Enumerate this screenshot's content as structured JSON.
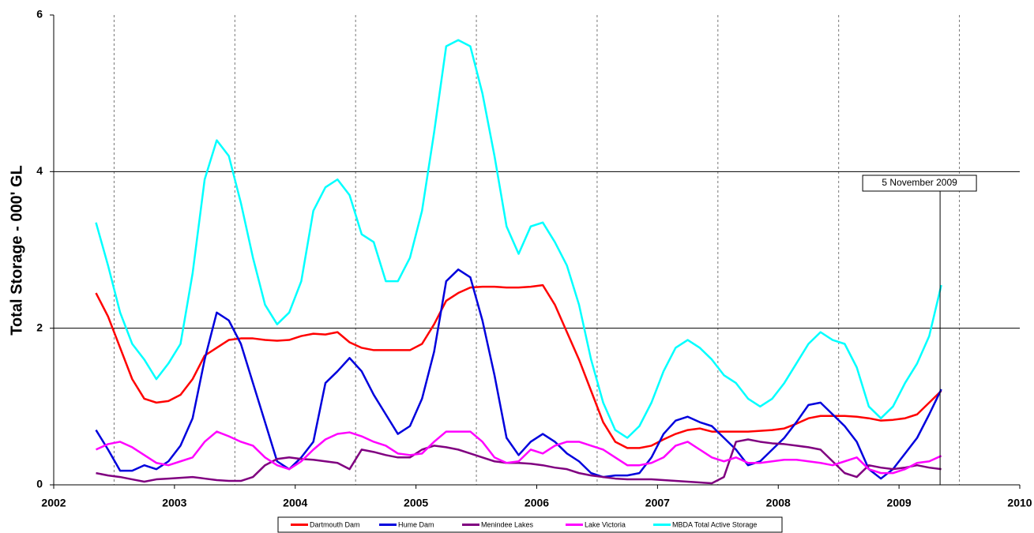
{
  "chart_data": {
    "type": "line",
    "ylabel": "Total Storage - 000' GL",
    "annotation": {
      "text": "5 November 2009",
      "x": 2009.34
    },
    "xlim": [
      2002,
      2010
    ],
    "xticks": [
      2002,
      2003,
      2004,
      2005,
      2006,
      2007,
      2008,
      2009,
      2010
    ],
    "xgrid_dashed": [
      2002.5,
      2003.5,
      2004.5,
      2005.5,
      2006.5,
      2007.5,
      2008.5,
      2009.5
    ],
    "ylim": [
      0,
      6
    ],
    "yticks": [
      0,
      2,
      4,
      6
    ],
    "grid": true,
    "legend": "bottom",
    "x": [
      2002.35,
      2002.45,
      2002.55,
      2002.65,
      2002.75,
      2002.85,
      2002.95,
      2003.05,
      2003.15,
      2003.25,
      2003.35,
      2003.45,
      2003.55,
      2003.65,
      2003.75,
      2003.85,
      2003.95,
      2004.05,
      2004.15,
      2004.25,
      2004.35,
      2004.45,
      2004.55,
      2004.65,
      2004.75,
      2004.85,
      2004.95,
      2005.05,
      2005.15,
      2005.25,
      2005.35,
      2005.45,
      2005.55,
      2005.65,
      2005.75,
      2005.85,
      2005.95,
      2006.05,
      2006.15,
      2006.25,
      2006.35,
      2006.45,
      2006.55,
      2006.65,
      2006.75,
      2006.85,
      2006.95,
      2007.05,
      2007.15,
      2007.25,
      2007.35,
      2007.45,
      2007.55,
      2007.65,
      2007.75,
      2007.85,
      2007.95,
      2008.05,
      2008.15,
      2008.25,
      2008.35,
      2008.45,
      2008.55,
      2008.65,
      2008.75,
      2008.85,
      2008.95,
      2009.05,
      2009.15,
      2009.25,
      2009.35
    ],
    "series": [
      {
        "name": "Dartmouth Dam",
        "color": "#ff0000",
        "values": [
          2.45,
          2.15,
          1.75,
          1.35,
          1.1,
          1.05,
          1.07,
          1.15,
          1.35,
          1.65,
          1.75,
          1.85,
          1.87,
          1.87,
          1.85,
          1.84,
          1.85,
          1.9,
          1.93,
          1.92,
          1.95,
          1.82,
          1.75,
          1.72,
          1.72,
          1.72,
          1.72,
          1.8,
          2.05,
          2.35,
          2.45,
          2.52,
          2.53,
          2.53,
          2.52,
          2.52,
          2.53,
          2.55,
          2.3,
          1.95,
          1.6,
          1.2,
          0.8,
          0.55,
          0.47,
          0.47,
          0.5,
          0.58,
          0.65,
          0.7,
          0.72,
          0.68,
          0.68,
          0.68,
          0.68,
          0.69,
          0.7,
          0.72,
          0.78,
          0.85,
          0.88,
          0.88,
          0.88,
          0.87,
          0.85,
          0.82,
          0.83,
          0.85,
          0.9,
          1.05,
          1.2
        ]
      },
      {
        "name": "Hume Dam",
        "color": "#0000dd",
        "values": [
          0.7,
          0.45,
          0.18,
          0.18,
          0.25,
          0.2,
          0.3,
          0.5,
          0.85,
          1.6,
          2.2,
          2.1,
          1.8,
          1.3,
          0.8,
          0.3,
          0.2,
          0.35,
          0.55,
          1.3,
          1.45,
          1.62,
          1.45,
          1.15,
          0.9,
          0.65,
          0.75,
          1.1,
          1.7,
          2.6,
          2.75,
          2.65,
          2.1,
          1.4,
          0.6,
          0.38,
          0.55,
          0.65,
          0.55,
          0.4,
          0.3,
          0.15,
          0.1,
          0.12,
          0.12,
          0.15,
          0.35,
          0.65,
          0.82,
          0.87,
          0.8,
          0.75,
          0.6,
          0.45,
          0.25,
          0.3,
          0.45,
          0.6,
          0.8,
          1.02,
          1.05,
          0.9,
          0.75,
          0.55,
          0.2,
          0.08,
          0.2,
          0.4,
          0.6,
          0.9,
          1.22
        ]
      },
      {
        "name": "Menindee Lakes",
        "color": "#800080",
        "values": [
          0.15,
          0.12,
          0.1,
          0.07,
          0.04,
          0.07,
          0.08,
          0.09,
          0.1,
          0.08,
          0.06,
          0.05,
          0.05,
          0.1,
          0.25,
          0.33,
          0.35,
          0.33,
          0.32,
          0.3,
          0.28,
          0.2,
          0.45,
          0.42,
          0.38,
          0.35,
          0.35,
          0.45,
          0.5,
          0.48,
          0.45,
          0.4,
          0.35,
          0.3,
          0.28,
          0.28,
          0.27,
          0.25,
          0.22,
          0.2,
          0.15,
          0.12,
          0.1,
          0.08,
          0.07,
          0.07,
          0.07,
          0.06,
          0.05,
          0.04,
          0.03,
          0.02,
          0.1,
          0.55,
          0.58,
          0.55,
          0.53,
          0.52,
          0.5,
          0.48,
          0.45,
          0.3,
          0.15,
          0.1,
          0.25,
          0.22,
          0.2,
          0.22,
          0.25,
          0.22,
          0.2
        ]
      },
      {
        "name": "Lake Victoria",
        "color": "#ff00ff",
        "values": [
          0.45,
          0.52,
          0.55,
          0.48,
          0.38,
          0.28,
          0.25,
          0.3,
          0.35,
          0.55,
          0.68,
          0.62,
          0.55,
          0.5,
          0.35,
          0.25,
          0.2,
          0.3,
          0.45,
          0.58,
          0.65,
          0.67,
          0.62,
          0.55,
          0.5,
          0.4,
          0.38,
          0.4,
          0.55,
          0.68,
          0.68,
          0.68,
          0.55,
          0.35,
          0.28,
          0.3,
          0.45,
          0.4,
          0.5,
          0.55,
          0.55,
          0.5,
          0.45,
          0.35,
          0.25,
          0.25,
          0.28,
          0.35,
          0.5,
          0.55,
          0.45,
          0.35,
          0.3,
          0.35,
          0.28,
          0.28,
          0.3,
          0.32,
          0.32,
          0.3,
          0.28,
          0.25,
          0.3,
          0.35,
          0.2,
          0.15,
          0.15,
          0.2,
          0.28,
          0.3,
          0.37
        ]
      },
      {
        "name": "MBDA Total Active Storage",
        "color": "#00ffff",
        "values": [
          3.35,
          2.8,
          2.2,
          1.8,
          1.6,
          1.35,
          1.55,
          1.8,
          2.7,
          3.9,
          4.4,
          4.2,
          3.6,
          2.9,
          2.3,
          2.05,
          2.2,
          2.6,
          3.5,
          3.8,
          3.9,
          3.7,
          3.2,
          3.1,
          2.6,
          2.6,
          2.9,
          3.5,
          4.5,
          5.6,
          5.68,
          5.6,
          5.0,
          4.2,
          3.3,
          2.95,
          3.3,
          3.35,
          3.1,
          2.8,
          2.3,
          1.6,
          1.05,
          0.7,
          0.6,
          0.75,
          1.05,
          1.45,
          1.75,
          1.85,
          1.75,
          1.6,
          1.4,
          1.3,
          1.1,
          1.0,
          1.1,
          1.3,
          1.55,
          1.8,
          1.95,
          1.85,
          1.8,
          1.5,
          1.0,
          0.85,
          1.0,
          1.3,
          1.55,
          1.9,
          2.55
        ]
      }
    ]
  }
}
